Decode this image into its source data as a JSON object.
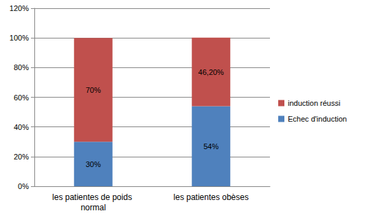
{
  "chart_data": {
    "type": "bar",
    "stacked": true,
    "categories": [
      "les patientes de poids normal",
      "les patientes obèses"
    ],
    "series": [
      {
        "name": "Echec d'induction",
        "color": "#4f81bd",
        "values": [
          30,
          54
        ],
        "value_labels": [
          "30%",
          "54%"
        ]
      },
      {
        "name": "induction réussi",
        "color": "#c0504d",
        "values": [
          70,
          46.2
        ],
        "value_labels": [
          "70%",
          "46,20%"
        ]
      }
    ],
    "ylim": [
      0,
      120
    ],
    "yticks": [
      {
        "value": 0,
        "label": "0%"
      },
      {
        "value": 20,
        "label": "20%"
      },
      {
        "value": 40,
        "label": "40%"
      },
      {
        "value": 60,
        "label": "60%"
      },
      {
        "value": 80,
        "label": "80%"
      },
      {
        "value": 100,
        "label": "100%"
      },
      {
        "value": 120,
        "label": "120%"
      }
    ],
    "grid": true,
    "legend": "right",
    "data_labels": true
  }
}
